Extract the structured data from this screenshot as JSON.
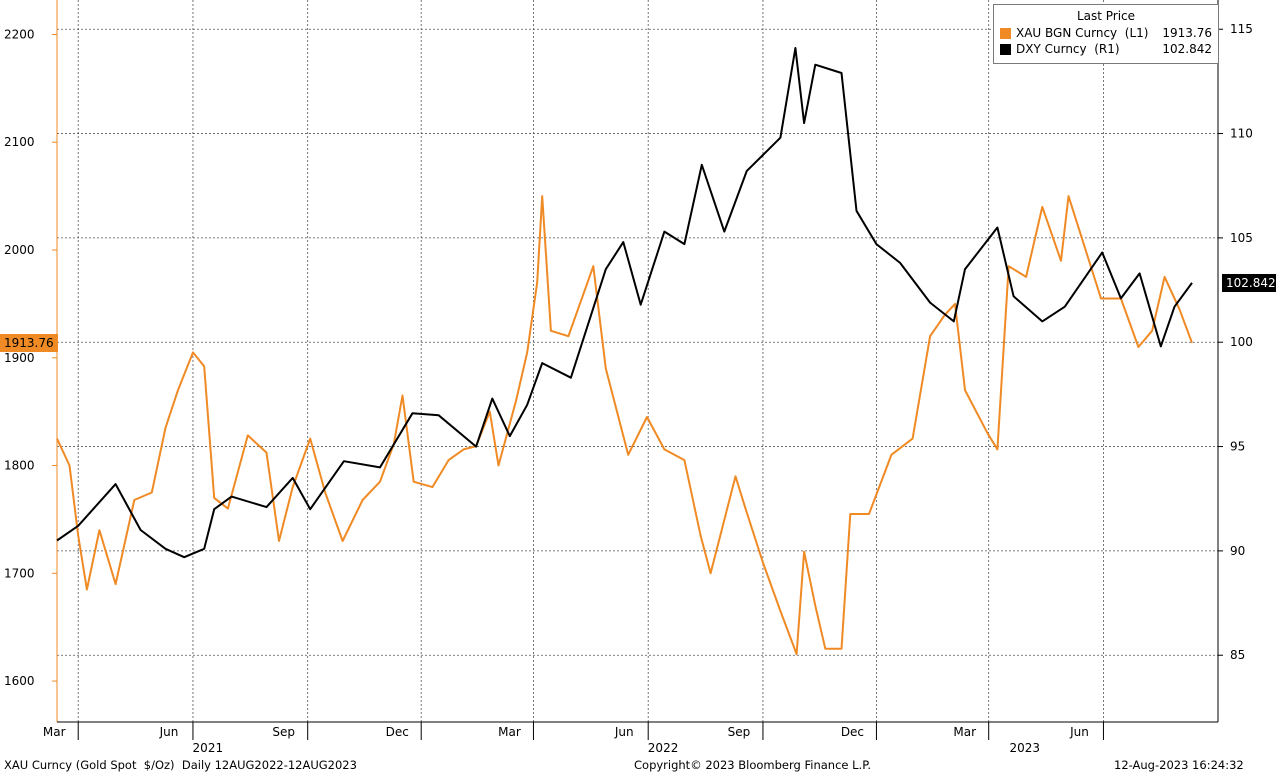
{
  "chart_data": {
    "type": "line",
    "title": "",
    "x_range": [
      "2021-02-12",
      "2023-08-11"
    ],
    "left_axis": {
      "ticks": [
        1600,
        1700,
        1800,
        1900,
        2000,
        2100,
        2200
      ],
      "range": [
        1562,
        2232
      ]
    },
    "right_axis": {
      "ticks": [
        85,
        90,
        95,
        100,
        105,
        110,
        115
      ],
      "range": [
        81.8,
        116.4
      ]
    },
    "x_ticks": [
      {
        "label": "Mar",
        "date": "2021-03-01"
      },
      {
        "label": "Jun",
        "date": "2021-06-01"
      },
      {
        "label": "Sep",
        "date": "2021-09-01"
      },
      {
        "label": "Dec",
        "date": "2021-12-01"
      },
      {
        "label": "Mar",
        "date": "2022-03-01"
      },
      {
        "label": "Jun",
        "date": "2022-06-01"
      },
      {
        "label": "Sep",
        "date": "2022-09-01"
      },
      {
        "label": "Dec",
        "date": "2022-12-01"
      },
      {
        "label": "Mar",
        "date": "2023-03-01"
      },
      {
        "label": "Jun",
        "date": "2023-06-01"
      }
    ],
    "years": [
      {
        "label": "2021",
        "date": "2021-07-15"
      },
      {
        "label": "2022",
        "date": "2022-07-15"
      },
      {
        "label": "2023",
        "date": "2023-05-01"
      }
    ],
    "grid": true,
    "legend": {
      "title": "Last Price",
      "placement": "top-right",
      "entries": [
        {
          "name": "XAU BGN Curncy  (L1)",
          "value": "1913.76",
          "color": "#f08a24"
        },
        {
          "name": "DXY Curncy  (R1)",
          "value": "102.842",
          "color": "#000000"
        }
      ]
    },
    "series": [
      {
        "name": "XAU BGN Curncy",
        "axis": "left",
        "color": "#f08a24",
        "last_value": "1913.76",
        "points": [
          [
            "2021-02-12",
            1825
          ],
          [
            "2021-02-22",
            1800
          ],
          [
            "2021-03-01",
            1735
          ],
          [
            "2021-03-08",
            1685
          ],
          [
            "2021-03-18",
            1740
          ],
          [
            "2021-03-31",
            1690
          ],
          [
            "2021-04-15",
            1768
          ],
          [
            "2021-04-29",
            1775
          ],
          [
            "2021-05-10",
            1835
          ],
          [
            "2021-05-20",
            1870
          ],
          [
            "2021-06-01",
            1905
          ],
          [
            "2021-06-10",
            1892
          ],
          [
            "2021-06-18",
            1770
          ],
          [
            "2021-06-29",
            1760
          ],
          [
            "2021-07-15",
            1828
          ],
          [
            "2021-07-30",
            1812
          ],
          [
            "2021-08-09",
            1730
          ],
          [
            "2021-08-20",
            1780
          ],
          [
            "2021-09-03",
            1825
          ],
          [
            "2021-09-15",
            1775
          ],
          [
            "2021-09-29",
            1730
          ],
          [
            "2021-10-15",
            1768
          ],
          [
            "2021-10-29",
            1785
          ],
          [
            "2021-11-09",
            1820
          ],
          [
            "2021-11-16",
            1865
          ],
          [
            "2021-11-25",
            1785
          ],
          [
            "2021-12-10",
            1780
          ],
          [
            "2021-12-23",
            1805
          ],
          [
            "2022-01-04",
            1815
          ],
          [
            "2022-01-14",
            1818
          ],
          [
            "2022-01-25",
            1850
          ],
          [
            "2022-02-01",
            1800
          ],
          [
            "2022-02-15",
            1860
          ],
          [
            "2022-02-24",
            1905
          ],
          [
            "2022-03-04",
            1970
          ],
          [
            "2022-03-08",
            2050
          ],
          [
            "2022-03-15",
            1925
          ],
          [
            "2022-03-29",
            1920
          ],
          [
            "2022-04-18",
            1985
          ],
          [
            "2022-04-28",
            1890
          ],
          [
            "2022-05-16",
            1810
          ],
          [
            "2022-05-31",
            1845
          ],
          [
            "2022-06-14",
            1815
          ],
          [
            "2022-06-30",
            1805
          ],
          [
            "2022-07-13",
            1735
          ],
          [
            "2022-07-21",
            1700
          ],
          [
            "2022-08-10",
            1790
          ],
          [
            "2022-08-18",
            1760
          ],
          [
            "2022-09-01",
            1710
          ],
          [
            "2022-09-15",
            1665
          ],
          [
            "2022-09-28",
            1625
          ],
          [
            "2022-10-04",
            1720
          ],
          [
            "2022-10-13",
            1670
          ],
          [
            "2022-10-21",
            1630
          ],
          [
            "2022-11-03",
            1630
          ],
          [
            "2022-11-10",
            1755
          ],
          [
            "2022-11-25",
            1755
          ],
          [
            "2022-12-13",
            1810
          ],
          [
            "2022-12-30",
            1825
          ],
          [
            "2023-01-13",
            1920
          ],
          [
            "2023-01-25",
            1940
          ],
          [
            "2023-02-02",
            1950
          ],
          [
            "2023-02-10",
            1870
          ],
          [
            "2023-02-28",
            1830
          ],
          [
            "2023-03-08",
            1815
          ],
          [
            "2023-03-17",
            1985
          ],
          [
            "2023-03-31",
            1975
          ],
          [
            "2023-04-13",
            2040
          ],
          [
            "2023-04-28",
            1990
          ],
          [
            "2023-05-04",
            2050
          ],
          [
            "2023-05-15",
            2010
          ],
          [
            "2023-05-30",
            1955
          ],
          [
            "2023-06-15",
            1955
          ],
          [
            "2023-06-29",
            1910
          ],
          [
            "2023-07-10",
            1925
          ],
          [
            "2023-07-20",
            1975
          ],
          [
            "2023-08-01",
            1945
          ],
          [
            "2023-08-11",
            1913.76
          ]
        ]
      },
      {
        "name": "DXY Curncy",
        "axis": "right",
        "color": "#000000",
        "last_value": "102.842",
        "points": [
          [
            "2021-02-12",
            90.5
          ],
          [
            "2021-03-01",
            91.2
          ],
          [
            "2021-03-31",
            93.2
          ],
          [
            "2021-04-20",
            91.0
          ],
          [
            "2021-05-10",
            90.1
          ],
          [
            "2021-05-25",
            89.7
          ],
          [
            "2021-06-10",
            90.1
          ],
          [
            "2021-06-18",
            92.0
          ],
          [
            "2021-07-02",
            92.6
          ],
          [
            "2021-07-30",
            92.1
          ],
          [
            "2021-08-20",
            93.5
          ],
          [
            "2021-09-03",
            92.0
          ],
          [
            "2021-09-30",
            94.3
          ],
          [
            "2021-10-29",
            94.0
          ],
          [
            "2021-11-24",
            96.6
          ],
          [
            "2021-12-15",
            96.5
          ],
          [
            "2022-01-14",
            95.0
          ],
          [
            "2022-01-27",
            97.3
          ],
          [
            "2022-02-10",
            95.5
          ],
          [
            "2022-02-24",
            97.0
          ],
          [
            "2022-03-08",
            99.0
          ],
          [
            "2022-03-31",
            98.3
          ],
          [
            "2022-04-28",
            103.5
          ],
          [
            "2022-05-12",
            104.8
          ],
          [
            "2022-05-26",
            101.8
          ],
          [
            "2022-06-14",
            105.3
          ],
          [
            "2022-06-30",
            104.7
          ],
          [
            "2022-07-14",
            108.5
          ],
          [
            "2022-08-01",
            105.3
          ],
          [
            "2022-08-19",
            108.2
          ],
          [
            "2022-09-15",
            109.8
          ],
          [
            "2022-09-27",
            114.1
          ],
          [
            "2022-10-04",
            110.5
          ],
          [
            "2022-10-13",
            113.3
          ],
          [
            "2022-11-03",
            112.9
          ],
          [
            "2022-11-15",
            106.3
          ],
          [
            "2022-12-01",
            104.7
          ],
          [
            "2022-12-20",
            103.8
          ],
          [
            "2023-01-13",
            101.9
          ],
          [
            "2023-02-01",
            101.0
          ],
          [
            "2023-02-10",
            103.5
          ],
          [
            "2023-03-08",
            105.5
          ],
          [
            "2023-03-21",
            102.2
          ],
          [
            "2023-04-13",
            101.0
          ],
          [
            "2023-05-01",
            101.7
          ],
          [
            "2023-05-31",
            104.3
          ],
          [
            "2023-06-15",
            102.1
          ],
          [
            "2023-06-30",
            103.3
          ],
          [
            "2023-07-17",
            99.8
          ],
          [
            "2023-07-28",
            101.7
          ],
          [
            "2023-08-11",
            102.842
          ]
        ]
      }
    ]
  },
  "footer": {
    "left": "XAU Curncy (Gold Spot  $/Oz)  Daily 12AUG2022-12AUG2023",
    "center": "Copyright© 2023 Bloomberg Finance L.P.",
    "right": "12-Aug-2023 16:24:32"
  }
}
